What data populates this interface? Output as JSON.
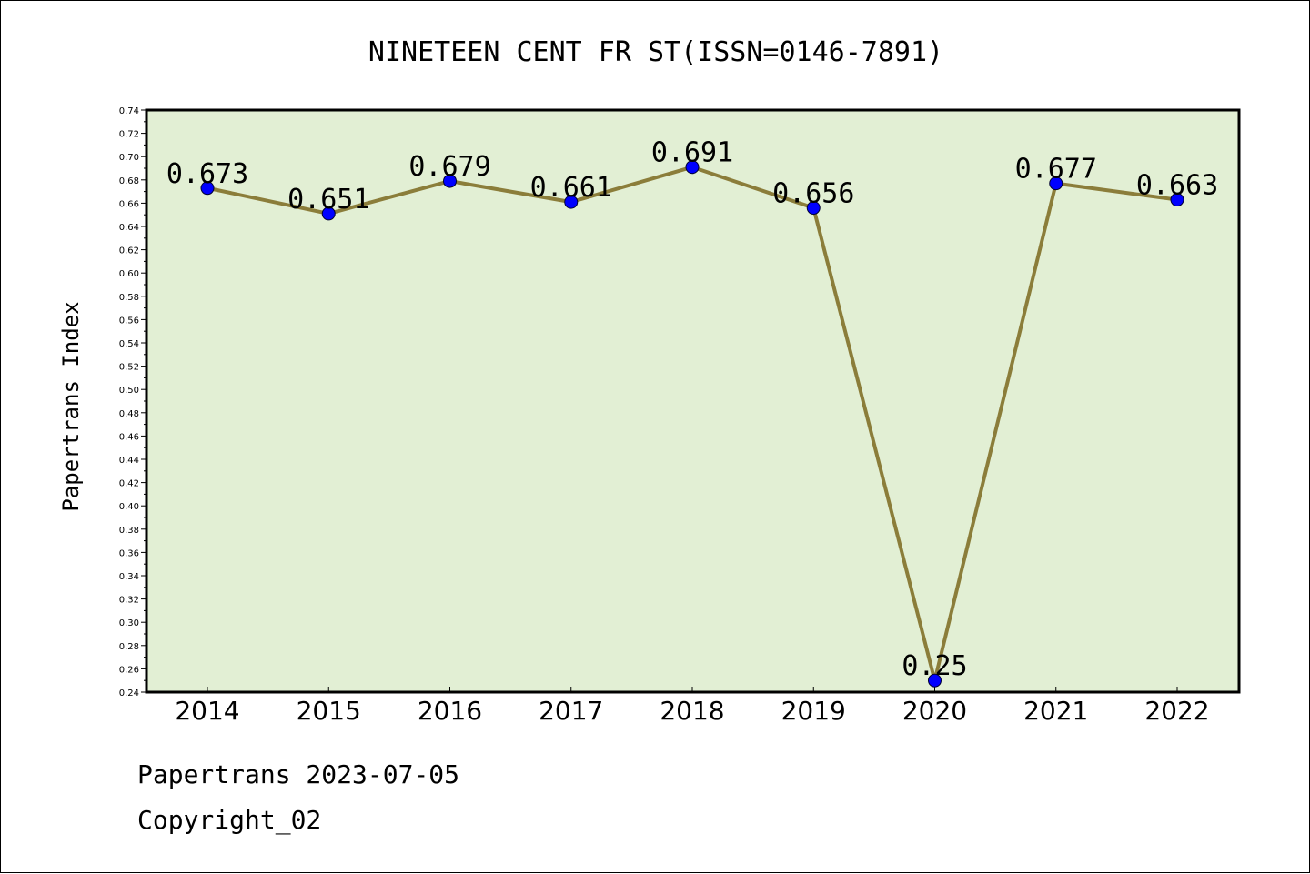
{
  "chart_data": {
    "type": "line",
    "title": "NINETEEN CENT FR ST(ISSN=0146-7891)",
    "xlabel": "",
    "ylabel": "Papertrans Index",
    "categories": [
      "2014",
      "2015",
      "2016",
      "2017",
      "2018",
      "2019",
      "2020",
      "2021",
      "2022"
    ],
    "series": [
      {
        "values": [
          0.673,
          0.651,
          0.679,
          0.661,
          0.691,
          0.656,
          0.25,
          0.677,
          0.663
        ],
        "labels": [
          "0.673",
          "0.651",
          "0.679",
          "0.661",
          "0.691",
          "0.656",
          "0.25",
          "0.677",
          "0.663"
        ]
      }
    ],
    "ylim": [
      0.24,
      0.74
    ],
    "ytick_step": 0.02,
    "grid": false,
    "legend": "none",
    "colors": {
      "line": "#8B7D3A",
      "marker": "#0000FF",
      "plot_background": "#E2EFD4",
      "axis": "#000000"
    }
  },
  "footer": {
    "line1": "Papertrans 2023-07-05",
    "line2": "Copyright_02"
  }
}
